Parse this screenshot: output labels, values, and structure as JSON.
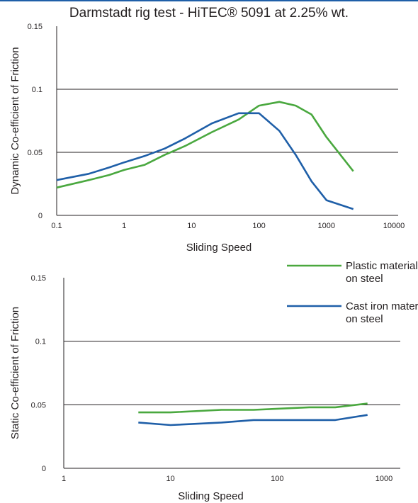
{
  "title": "Darmstadt rig  test - HiTEC® 5091 at 2.25% wt.",
  "colors": {
    "accent_line": "#1f5fa8",
    "plastic": "#4aa83f",
    "castiron": "#1f5fa8",
    "grid": "#231f20"
  },
  "legend": {
    "position": "top-right of lower chart",
    "items": [
      {
        "line1": "Plastic material",
        "line2": "on steel",
        "color": "#4aa83f"
      },
      {
        "line1": "Cast iron material",
        "line2": "on steel",
        "color": "#1f5fa8"
      }
    ]
  },
  "chart_data": [
    {
      "type": "line",
      "xscale": "log",
      "xlabel": "Sliding Speed",
      "ylabel": "Dynamic Co-efficient of Friction",
      "xlim": [
        0.1,
        10000
      ],
      "ylim": [
        0,
        0.15
      ],
      "xticks": [
        "0.1",
        "1",
        "10",
        "100",
        "1000",
        "10000"
      ],
      "xtick_values": [
        0.1,
        1,
        10,
        100,
        1000,
        10000
      ],
      "yticks": [
        "0",
        "0.05",
        "0.1",
        "0.15"
      ],
      "ytick_values": [
        0,
        0.05,
        0.1,
        0.15
      ],
      "gridlines_y": [
        0.05,
        0.1
      ],
      "series": [
        {
          "name": "Plastic material on steel",
          "color": "#4aa83f",
          "x": [
            0.1,
            0.3,
            0.6,
            1,
            2,
            4,
            8,
            20,
            50,
            100,
            200,
            350,
            600,
            1000,
            2500
          ],
          "y": [
            0.022,
            0.028,
            0.032,
            0.036,
            0.04,
            0.048,
            0.055,
            0.066,
            0.076,
            0.087,
            0.09,
            0.087,
            0.08,
            0.062,
            0.035
          ]
        },
        {
          "name": "Cast iron material on steel",
          "color": "#1f5fa8",
          "x": [
            0.1,
            0.3,
            0.6,
            1,
            2,
            4,
            8,
            20,
            50,
            100,
            200,
            350,
            600,
            1000,
            2500
          ],
          "y": [
            0.028,
            0.033,
            0.038,
            0.042,
            0.047,
            0.053,
            0.061,
            0.073,
            0.081,
            0.081,
            0.067,
            0.048,
            0.027,
            0.012,
            0.005
          ]
        }
      ]
    },
    {
      "type": "line",
      "xscale": "log",
      "xlabel": "Sliding Speed",
      "ylabel": "Static Co-efficient of Friction",
      "xlim": [
        1,
        1000
      ],
      "ylim": [
        0,
        0.15
      ],
      "xticks": [
        "1",
        "10",
        "100",
        "1000"
      ],
      "xtick_values": [
        1,
        10,
        100,
        1000
      ],
      "yticks": [
        "0",
        "0.05",
        "0.1",
        "0.15"
      ],
      "ytick_values": [
        0,
        0.05,
        0.1,
        0.15
      ],
      "gridlines_y": [
        0.05,
        0.1
      ],
      "series": [
        {
          "name": "Plastic material on steel",
          "color": "#4aa83f",
          "x": [
            5,
            10,
            30,
            60,
            200,
            350,
            700
          ],
          "y": [
            0.044,
            0.044,
            0.046,
            0.046,
            0.048,
            0.048,
            0.051
          ]
        },
        {
          "name": "Cast iron material on steel",
          "color": "#1f5fa8",
          "x": [
            5,
            10,
            30,
            60,
            200,
            350,
            700
          ],
          "y": [
            0.036,
            0.034,
            0.036,
            0.038,
            0.038,
            0.038,
            0.042
          ]
        }
      ]
    }
  ]
}
